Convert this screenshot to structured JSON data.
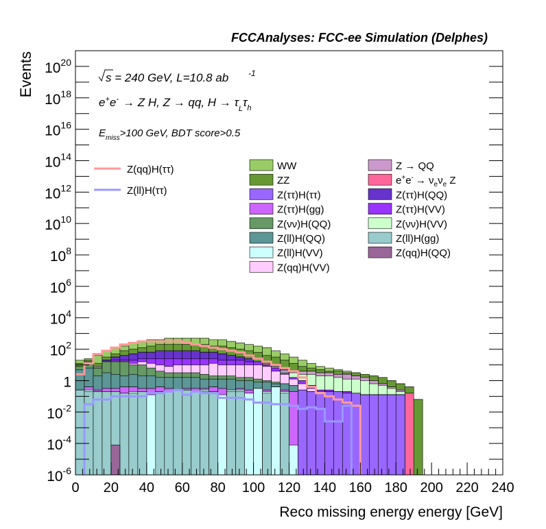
{
  "chart_data": {
    "type": "bar",
    "header": "FCCAnalyses: FCC-ee Simulation (Delphes)",
    "xlabel": "Reco missing energy energy [GeV]",
    "ylabel": "Events",
    "xlim": [
      0,
      240
    ],
    "ylim": [
      1e-06,
      1e+21
    ],
    "log_y": true,
    "bin_width": 5,
    "x_ticks": [
      0,
      20,
      40,
      60,
      80,
      100,
      120,
      140,
      160,
      180,
      200,
      220,
      240
    ],
    "x_tick_labels": [
      "0",
      "20",
      "40",
      "60",
      "80",
      "100",
      "120",
      "140",
      "160",
      "180",
      "200",
      "220",
      "240"
    ],
    "y_tick_exponents": [
      -6,
      -4,
      -2,
      0,
      2,
      4,
      6,
      8,
      10,
      12,
      14,
      16,
      18,
      20
    ],
    "annotations": {
      "sqrt_s": "s",
      "energy_lumi": " = 240 GeV, L=10.8 ab",
      "lumi_exp": "-1",
      "process_e": "e",
      "process_plus": "+",
      "process_e2": "e",
      "process_minus": "-",
      "process_rest": "→ Z H, Z → qq, H → τ",
      "process_sub1": "L",
      "process_tau2": "τ",
      "process_sub2": "h",
      "cut_e": "E",
      "cut_miss": "miss",
      "cut_rest": ">100 GeV, BDT score>0.5"
    },
    "legend_lines": [
      {
        "label": "Z(qq)H(ττ)",
        "color": "#ff9999"
      },
      {
        "label": "Z(ll)H(ττ)",
        "color": "#9999ff"
      }
    ],
    "legend_col1": [
      {
        "label": "WW",
        "color": "#99cc66"
      },
      {
        "label": "ZZ",
        "color": "#669933"
      },
      {
        "label": "Z(ττ)H(ττ)",
        "color": "#9966ff"
      },
      {
        "label": "Z(ττ)H(gg)",
        "color": "#cc66ff"
      },
      {
        "label": "Z(νν)H(QQ)",
        "color": "#669966"
      },
      {
        "label": "Z(ll)H(QQ)",
        "color": "#5c9696"
      },
      {
        "label": "Z(ll)H(VV)",
        "color": "#ccffff"
      },
      {
        "label": "Z(qq)H(VV)",
        "color": "#ffccff"
      }
    ],
    "legend_col2": [
      {
        "label": "Z → QQ",
        "color": "#cc99cc"
      },
      {
        "label_parts": [
          "e",
          "+",
          "e",
          "-",
          "→ ν",
          "e",
          "ν",
          "e",
          " Z"
        ],
        "color": "#ff6699"
      },
      {
        "label": "Z(ττ)H(QQ)",
        "color": "#6633cc"
      },
      {
        "label": "Z(ττ)H(VV)",
        "color": "#9933ff"
      },
      {
        "label": "Z(νν)H(VV)",
        "color": "#ccffcc"
      },
      {
        "label": "Z(ll)H(gg)",
        "color": "#99cccc"
      },
      {
        "label": "Z(qq)H(QQ)",
        "color": "#996699"
      }
    ],
    "stack_fill_log10": {
      "Z(qq)H(QQ)": [
        -9,
        -9,
        -9,
        -9.2,
        -4.1,
        -9,
        -9,
        -9,
        -9,
        -9,
        -9,
        -9,
        -9,
        -9,
        -9,
        -9,
        -9,
        -9,
        -9,
        -9,
        -9,
        -9,
        -9,
        -9,
        -9,
        -9,
        -9,
        -9,
        -9,
        -9,
        -9,
        -9,
        -9,
        -9,
        -9,
        -9,
        -9,
        -9,
        -9,
        -9,
        -9,
        -9,
        -9,
        -9,
        -9,
        -9,
        -9,
        -9
      ],
      "Z(ll)H(gg)": [
        -0.6,
        -0.7,
        -0.7,
        -0.7,
        -0.7,
        -0.8,
        -0.8,
        -0.7,
        -9,
        -0.7,
        -0.7,
        -0.6,
        -0.6,
        -0.7,
        -0.7,
        -0.7,
        -9,
        -0.7,
        -0.7,
        -9,
        -9,
        -0.8,
        -9,
        -0.8,
        -9,
        -9,
        -9,
        -9,
        -9,
        -9,
        -9,
        -9,
        -9,
        -9,
        -9,
        -9,
        -9,
        -9,
        -9,
        -9,
        -9,
        -9,
        -9,
        -9,
        -9,
        -9,
        -9,
        -9
      ],
      "Z(ll)H(VV)": [
        -0.6,
        -0.6,
        -0.7,
        -0.7,
        -0.7,
        -0.8,
        -0.7,
        -0.7,
        -0.9,
        -0.7,
        -0.7,
        -0.6,
        -0.6,
        -0.7,
        -0.6,
        -0.7,
        -0.9,
        -0.6,
        -0.6,
        -0.8,
        -0.5,
        -0.7,
        -0.4,
        -0.7,
        -4.1,
        -9,
        -9,
        -9,
        -9,
        -9,
        -9,
        -9,
        -9,
        -9,
        -9,
        -9,
        -9,
        -9,
        -9,
        -9,
        -9,
        -9,
        -9,
        -9,
        -9,
        -9,
        -9,
        -9
      ],
      "Z(ττ)H(gg)": [
        -0.6,
        -0.4,
        -0.6,
        -0.5,
        -0.5,
        -0.4,
        -0.4,
        -0.5,
        -0.5,
        -0.4,
        -0.5,
        -0.6,
        -0.5,
        -0.5,
        -0.5,
        -0.4,
        -0.5,
        -0.6,
        -0.5,
        -0.6,
        -0.5,
        -0.6,
        -0.4,
        -0.6,
        -0.7,
        -9,
        -9,
        -9,
        -9,
        -9,
        -9,
        -9,
        -9,
        -9,
        -9,
        -9,
        -9,
        -9,
        -9,
        -9,
        -9,
        -9,
        -9,
        -9,
        -9,
        -9,
        -9,
        -9
      ],
      "Z(ττ)H(ττ)": [
        -0.6,
        -0.4,
        -0.6,
        -0.5,
        -0.5,
        -0.4,
        -0.4,
        -0.5,
        -0.5,
        -0.4,
        -0.5,
        -0.6,
        -0.5,
        -0.5,
        -0.5,
        -0.4,
        -0.5,
        -0.6,
        -0.5,
        -0.6,
        -0.5,
        -0.6,
        -0.4,
        -0.6,
        -0.7,
        -0.6,
        -0.7,
        -0.8,
        -0.7,
        -0.7,
        -0.8,
        -0.8,
        -0.9,
        -0.9,
        -0.9,
        -0.9,
        -0.9,
        -9,
        -9,
        -9,
        -9,
        -9,
        -9,
        -9,
        -9,
        -9,
        -9,
        -9
      ],
      "Z(ll)H(QQ)": [
        0.7,
        0.8,
        0.3,
        0.5,
        0.4,
        0.3,
        0.4,
        0.3,
        0.3,
        0.2,
        0.2,
        0.2,
        0.2,
        0.2,
        0.1,
        0.1,
        0.1,
        0.1,
        0.0,
        0.0,
        -0.1,
        -0.1,
        -0.2,
        -0.2,
        -0.3,
        -0.6,
        -0.7,
        -0.8,
        -0.7,
        -0.7,
        -0.8,
        -0.8,
        -0.9,
        -0.9,
        -0.9,
        -0.9,
        -0.9,
        -9,
        -9,
        -9,
        -9,
        -9,
        -9,
        -9,
        -9,
        -9,
        -9,
        -9
      ],
      "Z(νν)H(QQ)": [
        0.9,
        1.2,
        0.8,
        1.2,
        1.2,
        1.2,
        1.0,
        1.0,
        0.8,
        0.6,
        0.5,
        0.5,
        0.5,
        0.5,
        0.4,
        0.3,
        0.3,
        0.3,
        0.2,
        0.2,
        0.1,
        0.0,
        -0.1,
        -0.2,
        -0.3,
        -0.6,
        -0.7,
        -0.8,
        -0.7,
        -0.7,
        -0.8,
        -0.8,
        -0.9,
        -0.9,
        -0.9,
        -0.9,
        -0.9,
        -9,
        -9,
        -9,
        -9,
        -9,
        -9,
        -9,
        -9,
        -9,
        -9,
        -9
      ],
      "Z(qq)H(VV)": [
        0.9,
        1.2,
        0.8,
        1.2,
        1.2,
        1.2,
        1.1,
        1.2,
        1.1,
        1.0,
        0.9,
        1.0,
        1.0,
        1.0,
        1.0,
        1.1,
        1.0,
        1.0,
        1.0,
        1.0,
        1.0,
        0.9,
        0.6,
        0.4,
        0.1,
        -0.2,
        -0.5,
        -0.7,
        -0.7,
        -0.7,
        -0.8,
        -0.8,
        -0.9,
        -0.9,
        -0.9,
        -0.9,
        -0.9,
        -9,
        -9,
        -9,
        -9,
        -9,
        -9,
        -9,
        -9,
        -9,
        -9,
        -9
      ],
      "Z(ττ)H(VV)": [
        0.9,
        1.2,
        0.8,
        1.2,
        1.3,
        1.3,
        1.3,
        1.4,
        1.4,
        1.4,
        1.4,
        1.4,
        1.4,
        1.4,
        1.4,
        1.4,
        1.3,
        1.3,
        1.3,
        1.2,
        1.2,
        1.0,
        0.8,
        0.5,
        0.2,
        0.0,
        -0.3,
        -0.6,
        -0.6,
        -0.7,
        -0.7,
        -0.8,
        -0.9,
        -0.9,
        -0.9,
        -0.9,
        -0.9,
        -9,
        -9,
        -9,
        -9,
        -9,
        -9,
        -9,
        -9,
        -9,
        -9,
        -9
      ],
      "Z(ττ)H(QQ)": [
        0.9,
        1.2,
        0.8,
        1.3,
        1.5,
        1.6,
        1.7,
        1.8,
        1.8,
        1.9,
        1.9,
        1.9,
        1.9,
        1.9,
        1.8,
        1.8,
        1.7,
        1.6,
        1.5,
        1.4,
        1.2,
        1.0,
        0.8,
        0.5,
        0.2,
        0.0,
        -0.3,
        -0.6,
        -0.6,
        -0.7,
        -0.7,
        -0.8,
        -0.9,
        -0.9,
        -0.9,
        -0.9,
        -0.9,
        -9,
        -9,
        -9,
        -9,
        -9,
        -9,
        -9,
        -9,
        -9,
        -9,
        -9
      ],
      "Z(νν)H(VV)": [
        0.9,
        1.2,
        0.8,
        1.3,
        1.5,
        1.6,
        1.7,
        1.8,
        1.8,
        1.9,
        1.9,
        1.9,
        1.9,
        1.9,
        1.8,
        1.8,
        1.7,
        1.6,
        1.5,
        1.4,
        1.2,
        1.0,
        0.8,
        0.6,
        0.5,
        0.4,
        0.4,
        0.3,
        0.3,
        0.2,
        0.1,
        0.1,
        0.0,
        -0.2,
        -0.3,
        -0.5,
        -0.7,
        -9,
        -9,
        -9,
        -9,
        -9,
        -9,
        -9,
        -9,
        -9,
        -9,
        -9
      ],
      "Z → QQ": [
        0.9,
        1.2,
        0.9,
        1.3,
        1.5,
        1.6,
        1.7,
        1.8,
        1.8,
        1.9,
        1.9,
        1.9,
        1.9,
        1.9,
        1.8,
        1.8,
        1.7,
        1.6,
        1.5,
        1.4,
        1.2,
        1.1,
        0.9,
        0.7,
        0.6,
        0.6,
        0.6,
        0.5,
        0.5,
        0.4,
        0.4,
        0.3,
        0.2,
        0.0,
        -0.2,
        -0.4,
        -0.6,
        -9,
        -9,
        -9,
        -9,
        -9,
        -9,
        -9,
        -9,
        -9,
        -9,
        -9
      ],
      "e+e- → νeνe Z": [
        0.9,
        1.2,
        0.9,
        1.3,
        1.5,
        1.6,
        1.7,
        1.8,
        1.8,
        1.9,
        1.9,
        1.9,
        1.9,
        1.9,
        1.8,
        1.8,
        1.7,
        1.6,
        1.5,
        1.4,
        1.2,
        1.1,
        0.9,
        0.7,
        0.6,
        0.6,
        0.6,
        0.5,
        0.5,
        0.4,
        0.4,
        0.3,
        0.2,
        0.0,
        -0.2,
        -0.4,
        -0.6,
        -0.8,
        -9,
        -9,
        -9,
        -9,
        -9,
        -9,
        -9,
        -9,
        -9,
        -9
      ],
      "ZZ": [
        1.1,
        1.3,
        1.1,
        1.5,
        1.7,
        1.9,
        2.0,
        2.1,
        2.2,
        2.3,
        2.3,
        2.3,
        2.3,
        2.3,
        2.3,
        2.2,
        2.2,
        2.1,
        2.0,
        1.9,
        1.8,
        1.6,
        1.5,
        1.3,
        1.1,
        0.9,
        0.8,
        0.7,
        0.6,
        0.6,
        0.5,
        0.5,
        0.4,
        0.3,
        0.2,
        0.0,
        -0.2,
        -0.4,
        -1.2,
        -9,
        -9,
        -9,
        -9,
        -9,
        -9,
        -9,
        -9,
        -9
      ],
      "WW": [
        1.3,
        1.4,
        1.6,
        1.9,
        2.1,
        2.2,
        2.4,
        2.5,
        2.6,
        2.6,
        2.7,
        2.7,
        2.7,
        2.7,
        2.7,
        2.6,
        2.6,
        2.5,
        2.4,
        2.3,
        2.2,
        2.1,
        1.9,
        1.7,
        1.5,
        1.3,
        1.1,
        0.9,
        0.8,
        0.7,
        0.6,
        0.5,
        0.4,
        0.3,
        0.2,
        0.0,
        -0.2,
        -0.4,
        -1.2,
        -9,
        -9,
        -9,
        -9,
        -9,
        -9,
        -9,
        -9,
        -9
      ]
    },
    "line_log10": {
      "Z(qq)H(ττ)": [
        0.4,
        1.1,
        1.7,
        1.9,
        2.1,
        2.3,
        2.4,
        2.5,
        2.5,
        2.5,
        2.5,
        2.5,
        2.4,
        2.3,
        2.2,
        2.1,
        2.0,
        1.9,
        1.8,
        1.6,
        1.4,
        1.2,
        1.0,
        0.8,
        0.6,
        0.2,
        -0.4,
        -0.8,
        -1.0,
        -1.2,
        -1.4,
        -1.6,
        -9,
        -9,
        -9,
        -9,
        -9,
        -9,
        -9,
        -9,
        -9,
        -9,
        -9,
        -9,
        -9,
        -9,
        -9,
        -9
      ],
      "Z(ll)H(ττ)": [
        -6.5,
        -1.5,
        -1.2,
        -1.2,
        -1.0,
        -1.0,
        -1.0,
        -1.0,
        -0.8,
        -0.8,
        -0.7,
        -0.6,
        -0.9,
        -0.7,
        -0.8,
        -0.8,
        -1.1,
        -1.1,
        -1.1,
        -1.2,
        -1.4,
        -1.4,
        -1.5,
        -1.5,
        -1.6,
        -1.8,
        -1.7,
        -1.8,
        -2.6,
        -2.6,
        -1.6,
        -9,
        -9,
        -9,
        -9,
        -9,
        -9,
        -9,
        -9,
        -9,
        -9,
        -9,
        -9,
        -9,
        -9,
        -9,
        -9,
        -9
      ]
    }
  }
}
